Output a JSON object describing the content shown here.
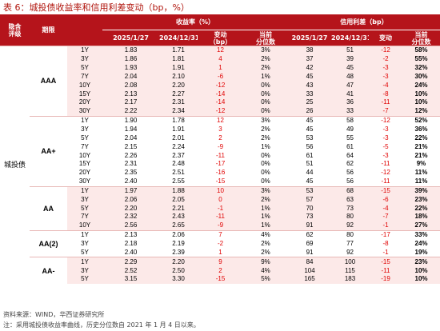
{
  "title": "表 6：城投债收益率和信用利差变动（bp，%）",
  "headers": {
    "category": "隐含评级",
    "category_line1": "隐含",
    "category_line2": "评级",
    "tenor": "期限",
    "yield_group": "收益率（%）",
    "spread_group": "信用利差（bp）",
    "date1": "2025/1/27",
    "date2": "2024/12/31",
    "change": "变动",
    "change_unit": "（bp）",
    "pctile_line1": "当前",
    "pctile_line2": "分位数"
  },
  "category_label": "城投债",
  "groups": [
    {
      "rating": "AAA",
      "rows": [
        [
          "1Y",
          "1.83",
          "1.71",
          "12",
          "3%",
          "38",
          "51",
          "-12",
          "58%"
        ],
        [
          "3Y",
          "1.86",
          "1.81",
          "4",
          "2%",
          "37",
          "39",
          "-2",
          "55%"
        ],
        [
          "5Y",
          "1.93",
          "1.91",
          "1",
          "2%",
          "42",
          "45",
          "-3",
          "32%"
        ],
        [
          "7Y",
          "2.04",
          "2.10",
          "-6",
          "1%",
          "45",
          "48",
          "-3",
          "30%"
        ],
        [
          "10Y",
          "2.08",
          "2.20",
          "-12",
          "0%",
          "43",
          "47",
          "-4",
          "24%"
        ],
        [
          "15Y",
          "2.13",
          "2.27",
          "-14",
          "0%",
          "33",
          "41",
          "-8",
          "10%"
        ],
        [
          "20Y",
          "2.17",
          "2.31",
          "-14",
          "0%",
          "25",
          "36",
          "-11",
          "10%"
        ],
        [
          "30Y",
          "2.22",
          "2.34",
          "-12",
          "0%",
          "26",
          "33",
          "-7",
          "12%"
        ]
      ]
    },
    {
      "rating": "AA+",
      "rows": [
        [
          "1Y",
          "1.90",
          "1.78",
          "12",
          "3%",
          "45",
          "58",
          "-12",
          "52%"
        ],
        [
          "3Y",
          "1.94",
          "1.91",
          "3",
          "2%",
          "45",
          "49",
          "-3",
          "36%"
        ],
        [
          "5Y",
          "2.04",
          "2.01",
          "2",
          "2%",
          "53",
          "55",
          "-3",
          "22%"
        ],
        [
          "7Y",
          "2.15",
          "2.24",
          "-9",
          "1%",
          "56",
          "61",
          "-5",
          "21%"
        ],
        [
          "10Y",
          "2.26",
          "2.37",
          "-11",
          "0%",
          "61",
          "64",
          "-3",
          "21%"
        ],
        [
          "15Y",
          "2.31",
          "2.48",
          "-17",
          "0%",
          "51",
          "62",
          "-11",
          "9%"
        ],
        [
          "20Y",
          "2.35",
          "2.51",
          "-16",
          "0%",
          "44",
          "56",
          "-12",
          "11%"
        ],
        [
          "30Y",
          "2.40",
          "2.55",
          "-15",
          "0%",
          "45",
          "56",
          "-11",
          "11%"
        ]
      ]
    },
    {
      "rating": "AA",
      "rows": [
        [
          "1Y",
          "1.97",
          "1.88",
          "10",
          "3%",
          "53",
          "68",
          "-15",
          "39%"
        ],
        [
          "3Y",
          "2.06",
          "2.05",
          "0",
          "2%",
          "57",
          "63",
          "-6",
          "23%"
        ],
        [
          "5Y",
          "2.20",
          "2.21",
          "-1",
          "1%",
          "70",
          "73",
          "-4",
          "22%"
        ],
        [
          "7Y",
          "2.32",
          "2.43",
          "-11",
          "1%",
          "73",
          "80",
          "-7",
          "18%"
        ],
        [
          "10Y",
          "2.56",
          "2.65",
          "-9",
          "1%",
          "91",
          "92",
          "-1",
          "27%"
        ]
      ]
    },
    {
      "rating": "AA(2)",
      "rows": [
        [
          "1Y",
          "2.13",
          "2.06",
          "7",
          "4%",
          "62",
          "80",
          "-17",
          "33%"
        ],
        [
          "3Y",
          "2.18",
          "2.19",
          "-2",
          "2%",
          "69",
          "77",
          "-8",
          "24%"
        ],
        [
          "5Y",
          "2.40",
          "2.39",
          "1",
          "2%",
          "91",
          "92",
          "-1",
          "19%"
        ]
      ]
    },
    {
      "rating": "AA-",
      "rows": [
        [
          "1Y",
          "2.29",
          "2.20",
          "9",
          "9%",
          "84",
          "100",
          "-15",
          "23%"
        ],
        [
          "3Y",
          "2.52",
          "2.50",
          "2",
          "4%",
          "104",
          "115",
          "-11",
          "10%"
        ],
        [
          "5Y",
          "3.15",
          "3.30",
          "-15",
          "5%",
          "165",
          "183",
          "-19",
          "10%"
        ]
      ]
    }
  ],
  "footnotes": {
    "source": "资料来源：WIND，华西证券研究所",
    "note": "注：采用城投债收益率曲线，历史分位数自 2021 年 1 月 4 日以来。"
  },
  "colors": {
    "header_bg": "#b5141b",
    "title_red": "#b0140c",
    "band_pink": "#fce9e8",
    "change_red": "#e00000"
  }
}
